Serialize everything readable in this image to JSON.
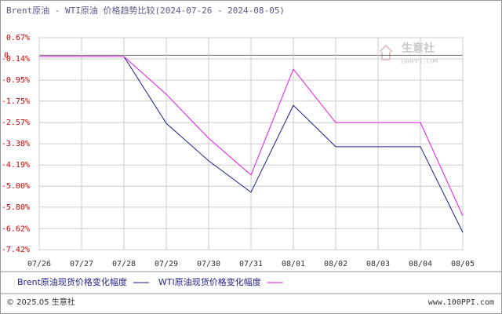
{
  "chart_data": {
    "type": "line",
    "title": "Brent原油 - WTI原油 价格趋势比较(2024-07-26 - 2024-08-05)",
    "categories": [
      "07/26",
      "07/27",
      "07/28",
      "07/29",
      "07/30",
      "07/31",
      "08/01",
      "08/02",
      "08/03",
      "08/04",
      "08/05"
    ],
    "series": [
      {
        "name": "Brent原油现货价格变化幅度",
        "color": "#1a1a8c",
        "values": [
          -0.05,
          -0.05,
          -0.05,
          -2.6,
          -4.03,
          -5.23,
          -1.91,
          -3.49,
          -3.49,
          -3.49,
          -6.76
        ]
      },
      {
        "name": "WTI原油现货价格变化幅度",
        "color": "#e619e6",
        "values": [
          -0.05,
          -0.05,
          -0.05,
          -1.49,
          -3.17,
          -4.57,
          -0.53,
          -2.57,
          -2.57,
          -2.57,
          -6.13
        ]
      }
    ],
    "ylim": [
      -7.42,
      0.67
    ],
    "yticks": [
      {
        "value": 0.67,
        "label": "0.67%"
      },
      {
        "value": -0.14,
        "label": "-0.14%"
      },
      {
        "value": -0.95,
        "label": "-0.95%"
      },
      {
        "value": -1.75,
        "label": "-1.75%"
      },
      {
        "value": -2.57,
        "label": "-2.57%"
      },
      {
        "value": -3.38,
        "label": "-3.38%"
      },
      {
        "value": -4.19,
        "label": "-4.19%"
      },
      {
        "value": -5.0,
        "label": "-5.00%"
      },
      {
        "value": -5.8,
        "label": "-5.80%"
      },
      {
        "value": -6.62,
        "label": "-6.62%"
      },
      {
        "value": -7.42,
        "label": "-7.42%"
      }
    ],
    "baseline": 0,
    "grid": true
  },
  "watermark": {
    "name": "生意社",
    "site": "100PPI.COM"
  },
  "footer": {
    "copyright": "© 2025.05 生意社",
    "url": "www.100PPI.com"
  }
}
